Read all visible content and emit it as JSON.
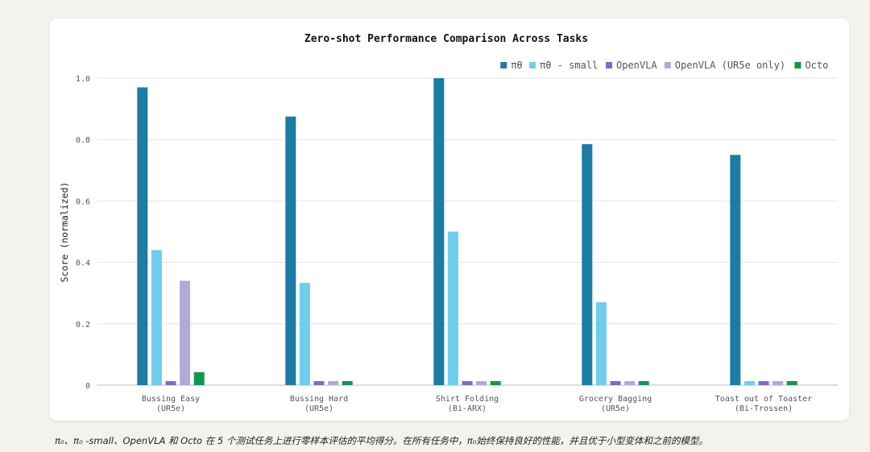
{
  "chart_data": {
    "type": "bar",
    "title": "Zero-shot Performance Comparison Across Tasks",
    "xlabel": "",
    "ylabel": "Score (normalized)",
    "ylim": [
      0,
      1.0
    ],
    "yticks": [
      "0",
      "0.2",
      "0.4",
      "0.6",
      "0.8",
      "1.0"
    ],
    "grid": true,
    "legend_position": "top-right",
    "categories": [
      [
        "Bussing Easy",
        "(UR5e)"
      ],
      [
        "Bussing Hard",
        "(UR5e)"
      ],
      [
        "Shirt Folding",
        "(Bi-ARX)"
      ],
      [
        "Grocery Bagging",
        "(UR5e)"
      ],
      [
        "Toast out of Toaster",
        "(Bi-Trossen)"
      ]
    ],
    "series": [
      {
        "name": "πθ",
        "color": "#1b7ca4",
        "values": [
          0.97,
          0.875,
          1.0,
          0.785,
          0.75
        ]
      },
      {
        "name": "πθ - small",
        "color": "#6fcdee",
        "values": [
          0.44,
          0.333,
          0.5,
          0.27,
          0.013
        ]
      },
      {
        "name": "OpenVLA",
        "color": "#7a6ccb",
        "values": [
          0.013,
          0.013,
          0.013,
          0.013,
          0.013
        ]
      },
      {
        "name": "OpenVLA (UR5e only)",
        "color": "#b2a9d8",
        "values": [
          0.34,
          0.013,
          0.013,
          0.013,
          0.013
        ]
      },
      {
        "name": "Octo",
        "color": "#0c9a4a",
        "values": [
          0.042,
          0.013,
          0.013,
          0.013,
          0.013
        ]
      }
    ]
  },
  "caption": "π₀、π₀ -small、OpenVLA 和 Octo 在 5 个测试任务上进行零样本评估的平均得分。在所有任务中，π₀始终保持良好的性能，并且优于小型变体和之前的模型。"
}
